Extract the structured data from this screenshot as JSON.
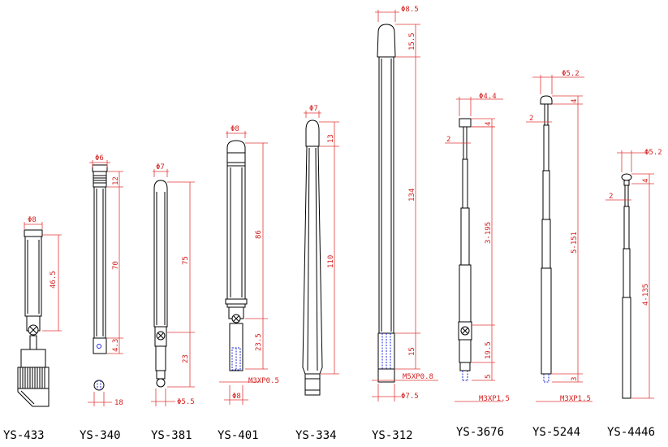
{
  "antennas": [
    {
      "model": "YS-433",
      "dims": {
        "dia": "Φ8",
        "len": "46.5"
      }
    },
    {
      "model": "YS-340",
      "dims": {
        "dia": "Φ6",
        "top": "12",
        "len": "70",
        "base": "4.3",
        "bottom": "18"
      }
    },
    {
      "model": "YS-381",
      "dims": {
        "dia": "Φ7",
        "len": "75",
        "lower": "23",
        "bottom": "Φ5.5"
      }
    },
    {
      "model": "YS-401",
      "dims": {
        "dia": "Φ8",
        "len": "86",
        "lower": "23.5",
        "thread": "M3XP0.5",
        "bottom": "Φ8"
      }
    },
    {
      "model": "YS-334",
      "dims": {
        "dia": "Φ7",
        "top": "13",
        "len": "110"
      }
    },
    {
      "model": "YS-312",
      "dims": {
        "dia": "Φ8.5",
        "top": "15.5",
        "len": "134",
        "lower": "15",
        "thread": "M5XP0.8",
        "bottom": "Φ7.5"
      }
    },
    {
      "model": "YS-3676",
      "dims": {
        "dia": "Φ4.4",
        "top": "4",
        "tip": "2",
        "len": "3-195",
        "lower": "19.5",
        "base": "5",
        "thread": "M3XP1.5"
      }
    },
    {
      "model": "YS-5244",
      "dims": {
        "dia": "Φ5.2",
        "top": "4",
        "tip": "2",
        "len": "5-151",
        "base": "3",
        "thread": "M3XP1.5"
      }
    },
    {
      "model": "YS-4446",
      "dims": {
        "dia": "Φ5.2",
        "top": "4",
        "tip": "2",
        "len": "4-135"
      }
    }
  ]
}
